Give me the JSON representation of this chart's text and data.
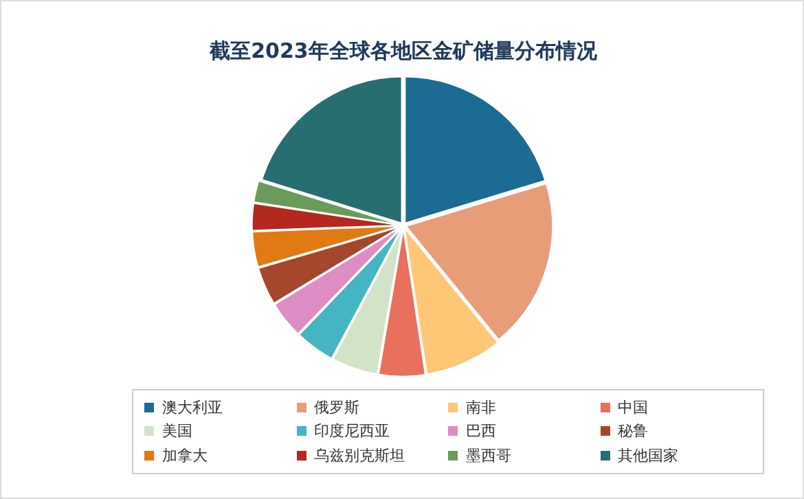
{
  "chart_data": {
    "type": "pie",
    "title": "截至2023年全球各地区金矿储量分布情况",
    "categories": [
      "澳大利亚",
      "俄罗斯",
      "南非",
      "中国",
      "美国",
      "印度尼西亚",
      "巴西",
      "秘鲁",
      "加拿大",
      "乌兹别克斯坦",
      "墨西哥",
      "其他国家"
    ],
    "values": [
      20.3,
      18.8,
      8.5,
      5.1,
      5.1,
      4.4,
      4.1,
      4.2,
      3.9,
      3.0,
      2.4,
      20.2
    ],
    "colors": [
      "#1b6b93",
      "#e89d78",
      "#ffc675",
      "#e8705c",
      "#d3e3c8",
      "#45b5c2",
      "#de8cc4",
      "#a5472c",
      "#e07a12",
      "#b3281f",
      "#6b9b5b",
      "#276e70"
    ],
    "legend": "bottom"
  }
}
